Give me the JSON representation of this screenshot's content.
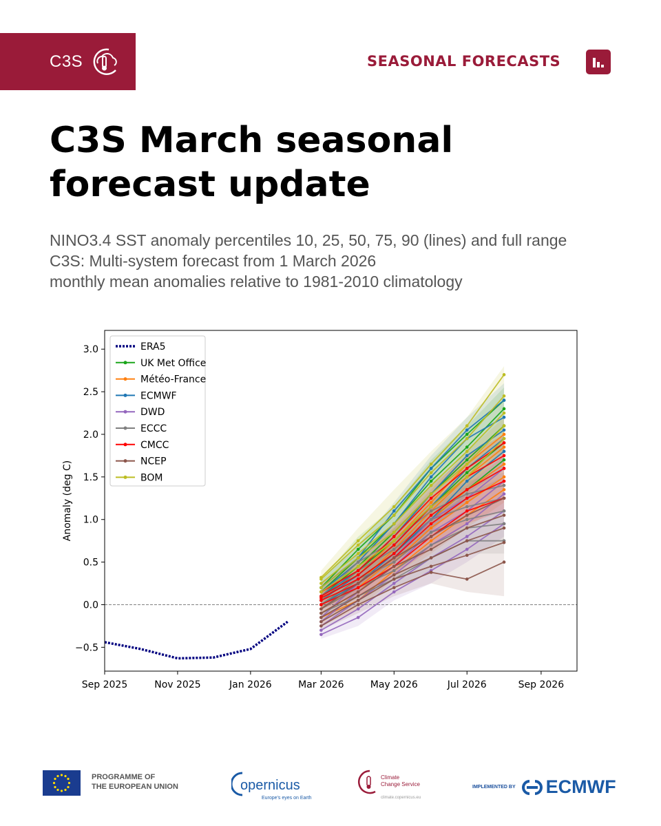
{
  "header": {
    "brand": "C3S",
    "section": "SEASONAL FORECASTS",
    "title_lines": [
      "C3S March seasonal",
      "forecast update"
    ],
    "subtitle_lines": [
      "NINO3.4 SST anomaly percentiles 10, 25, 50, 75, 90 (lines) and full range",
      "C3S: Multi-system forecast from 1 March 2026",
      "monthly mean anomalies relative to 1981-2010 climatology"
    ]
  },
  "colors": {
    "brand": "#9a1b39",
    "ecmwf_blue": "#1a5aa6"
  },
  "footer": {
    "eu_line1": "PROGRAMME OF",
    "eu_line2": "THE EUROPEAN UNION",
    "copernicus_name": "opernicus",
    "copernicus_tag": "Europe's eyes on Earth",
    "c3s_line1": "Climate",
    "c3s_line2": "Change Service",
    "c3s_url": "climate.copernicus.eu",
    "implemented_by": "IMPLEMENTED BY",
    "ecmwf": "ECMWF"
  },
  "chart_data": {
    "type": "line",
    "title": "",
    "xlabel": "",
    "ylabel": "Anomaly (deg C)",
    "ylim": [
      -0.78,
      3.22
    ],
    "xlim": [
      "2025-09-01",
      "2026-10-01"
    ],
    "x_ticks": [
      "2025-09-01",
      "2025-11-01",
      "2026-01-01",
      "2026-03-01",
      "2026-05-01",
      "2026-07-01",
      "2026-09-01"
    ],
    "x_tick_labels": [
      "Sep 2025",
      "Nov 2025",
      "Jan 2026",
      "Mar 2026",
      "May 2026",
      "Jul 2026",
      "Sep 2026"
    ],
    "y_ticks": [
      -0.5,
      0.0,
      0.5,
      1.0,
      1.5,
      2.0,
      2.5,
      3.0
    ],
    "y_tick_labels": [
      "−0.5",
      "0.0",
      "0.5",
      "1.0",
      "1.5",
      "2.0",
      "2.5",
      "3.0"
    ],
    "zero_line": true,
    "grid": false,
    "legend_position": "top-left",
    "observed": {
      "name": "ERA5",
      "color": "#000080",
      "style": "dotted",
      "x": [
        "2025-09-01",
        "2025-10-01",
        "2025-11-01",
        "2025-12-01",
        "2026-01-01",
        "2026-02-01"
      ],
      "y": [
        -0.44,
        -0.52,
        -0.63,
        -0.62,
        -0.52,
        -0.2
      ]
    },
    "forecast_x": [
      "2026-03-01",
      "2026-04-01",
      "2026-05-01",
      "2026-06-01",
      "2026-07-01",
      "2026-08-01"
    ],
    "series": [
      {
        "name": "UK Met Office",
        "color": "#1aa51a",
        "percentiles": [
          [
            0.0,
            0.3,
            0.6,
            1.0,
            1.35,
            1.7
          ],
          [
            0.05,
            0.4,
            0.75,
            1.15,
            1.55,
            1.9
          ],
          [
            0.1,
            0.45,
            0.85,
            1.3,
            1.7,
            2.1
          ],
          [
            0.15,
            0.55,
            0.95,
            1.45,
            1.85,
            2.3
          ],
          [
            0.2,
            0.65,
            1.05,
            1.6,
            2.0,
            2.4
          ]
        ],
        "range": [
          [
            -0.05,
            0.2,
            0.5,
            0.9,
            1.2,
            1.5
          ],
          [
            0.3,
            0.8,
            1.15,
            1.7,
            2.1,
            2.55
          ]
        ]
      },
      {
        "name": "Météo-France",
        "color": "#ff7f0e",
        "percentiles": [
          [
            -0.15,
            0.05,
            0.4,
            0.75,
            1.05,
            1.35
          ],
          [
            -0.1,
            0.15,
            0.5,
            0.9,
            1.2,
            1.5
          ],
          [
            -0.05,
            0.2,
            0.55,
            1.0,
            1.35,
            1.65
          ],
          [
            0.0,
            0.25,
            0.65,
            1.1,
            1.5,
            1.85
          ],
          [
            0.05,
            0.35,
            0.75,
            1.2,
            1.65,
            2.0
          ]
        ],
        "range": [
          [
            -0.25,
            -0.05,
            0.3,
            0.6,
            0.9,
            1.2
          ],
          [
            0.15,
            0.45,
            0.9,
            1.35,
            1.8,
            2.2
          ]
        ]
      },
      {
        "name": "ECMWF",
        "color": "#1f77b4",
        "percentiles": [
          [
            0.0,
            0.25,
            0.6,
            1.0,
            1.45,
            1.8
          ],
          [
            0.05,
            0.35,
            0.7,
            1.15,
            1.6,
            1.95
          ],
          [
            0.1,
            0.4,
            0.8,
            1.3,
            1.75,
            2.05
          ],
          [
            0.15,
            0.5,
            0.95,
            1.5,
            1.95,
            2.2
          ],
          [
            0.2,
            0.55,
            1.1,
            1.6,
            2.05,
            2.4
          ]
        ],
        "range": [
          [
            -0.05,
            0.15,
            0.5,
            0.85,
            1.3,
            1.6
          ],
          [
            0.3,
            0.7,
            1.2,
            1.75,
            2.2,
            2.6
          ]
        ]
      },
      {
        "name": "DWD",
        "color": "#9467bd",
        "percentiles": [
          [
            -0.35,
            -0.15,
            0.15,
            0.4,
            0.65,
            0.95
          ],
          [
            -0.3,
            -0.05,
            0.25,
            0.55,
            0.8,
            1.1
          ],
          [
            -0.25,
            0.05,
            0.35,
            0.7,
            0.95,
            1.3
          ],
          [
            -0.2,
            0.15,
            0.45,
            0.85,
            1.1,
            1.45
          ],
          [
            -0.15,
            0.25,
            0.55,
            1.0,
            1.25,
            1.6
          ]
        ],
        "range": [
          [
            -0.4,
            -0.25,
            0.05,
            0.25,
            0.5,
            0.8
          ],
          [
            -0.05,
            0.35,
            0.7,
            1.15,
            1.4,
            1.75
          ]
        ]
      },
      {
        "name": "ECCC",
        "color": "#7f7f7f",
        "percentiles": [
          [
            -0.1,
            0.1,
            0.3,
            0.55,
            0.75,
            0.75
          ],
          [
            -0.05,
            0.2,
            0.4,
            0.7,
            0.9,
            0.95
          ],
          [
            0.0,
            0.3,
            0.5,
            0.85,
            1.0,
            1.1
          ],
          [
            0.05,
            0.4,
            0.65,
            1.0,
            1.15,
            1.25
          ],
          [
            0.1,
            0.5,
            0.75,
            1.1,
            1.3,
            1.4
          ]
        ],
        "range": [
          [
            -0.2,
            0.0,
            0.2,
            0.4,
            0.6,
            0.6
          ],
          [
            0.2,
            0.6,
            0.9,
            1.25,
            1.45,
            1.55
          ]
        ]
      },
      {
        "name": "CMCC",
        "color": "#ff0000",
        "percentiles": [
          [
            0.0,
            0.2,
            0.45,
            0.8,
            1.1,
            1.25
          ],
          [
            0.05,
            0.25,
            0.55,
            0.95,
            1.25,
            1.45
          ],
          [
            0.08,
            0.3,
            0.6,
            1.05,
            1.35,
            1.6
          ],
          [
            0.1,
            0.35,
            0.7,
            1.15,
            1.5,
            1.75
          ],
          [
            0.15,
            0.4,
            0.8,
            1.25,
            1.6,
            1.9
          ]
        ],
        "range": [
          [
            -0.05,
            0.1,
            0.35,
            0.65,
            0.95,
            1.1
          ],
          [
            0.25,
            0.55,
            0.95,
            1.4,
            1.75,
            2.0
          ]
        ]
      },
      {
        "name": "NCEP",
        "color": "#8c564b",
        "percentiles": [
          [
            -0.25,
            0.0,
            0.2,
            0.38,
            0.3,
            0.5
          ],
          [
            -0.2,
            0.05,
            0.3,
            0.45,
            0.58,
            0.73
          ],
          [
            -0.15,
            0.1,
            0.35,
            0.55,
            0.75,
            0.9
          ],
          [
            -0.1,
            0.15,
            0.45,
            0.65,
            0.9,
            1.05
          ],
          [
            -0.05,
            0.25,
            0.55,
            0.8,
            1.05,
            1.25
          ]
        ],
        "range": [
          [
            -0.3,
            -0.1,
            0.1,
            0.25,
            0.15,
            0.1
          ],
          [
            0.1,
            0.4,
            0.75,
            1.0,
            1.3,
            1.5
          ]
        ]
      },
      {
        "name": "BOM",
        "color": "#bcbd22",
        "percentiles": [
          [
            0.15,
            0.45,
            0.75,
            1.15,
            1.5,
            1.95
          ],
          [
            0.2,
            0.55,
            0.85,
            1.3,
            1.65,
            2.1
          ],
          [
            0.25,
            0.6,
            0.95,
            1.4,
            1.8,
            2.25
          ],
          [
            0.3,
            0.7,
            1.05,
            1.55,
            1.95,
            2.45
          ],
          [
            0.32,
            0.75,
            1.15,
            1.65,
            2.1,
            2.7
          ]
        ],
        "range": [
          [
            0.05,
            0.35,
            0.6,
            1.0,
            1.35,
            1.8
          ],
          [
            0.4,
            0.9,
            1.35,
            1.8,
            2.2,
            2.8
          ]
        ]
      }
    ]
  }
}
